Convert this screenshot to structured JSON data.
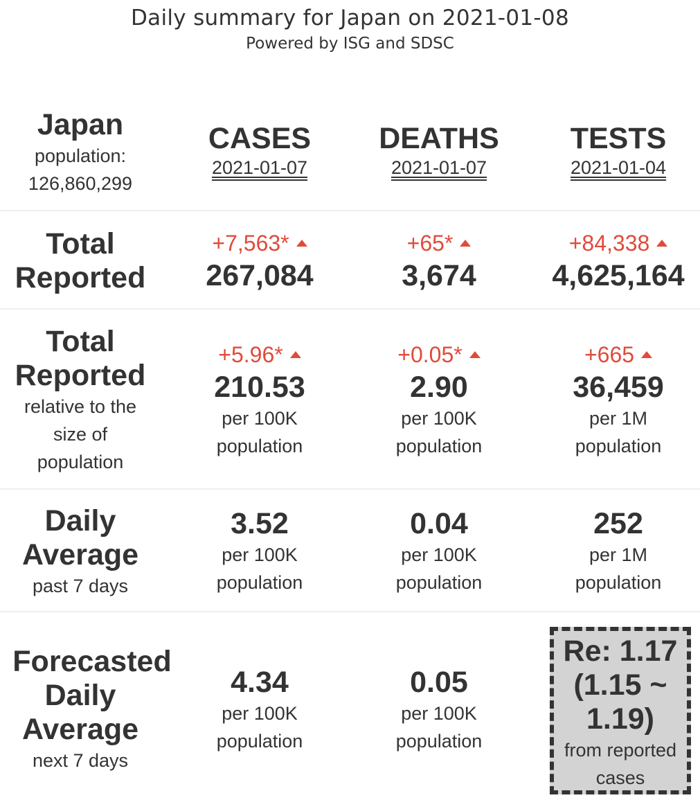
{
  "header": {
    "title": "Daily summary for Japan on 2021-01-08",
    "subtitle": "Powered by ISG and SDSC"
  },
  "country": {
    "name": "Japan",
    "population_label": "population:",
    "population": "126,860,299"
  },
  "columns": [
    {
      "name": "CASES",
      "date": "2021-01-07"
    },
    {
      "name": "DEATHS",
      "date": "2021-01-07"
    },
    {
      "name": "TESTS",
      "date": "2021-01-04"
    }
  ],
  "rows": {
    "total_reported": {
      "label_line1": "Total",
      "label_line2": "Reported",
      "cells": [
        {
          "delta": "+7,563*",
          "value": "267,084"
        },
        {
          "delta": "+65*",
          "value": "3,674"
        },
        {
          "delta": "+84,338",
          "value": "4,625,164"
        }
      ]
    },
    "relative": {
      "label_line1": "Total",
      "label_line2": "Reported",
      "sub_line1": "relative to the",
      "sub_line2": "size of",
      "sub_line3": "population",
      "cells": [
        {
          "delta": "+5.96*",
          "value": "210.53",
          "unit_line1": "per 100K",
          "unit_line2": "population"
        },
        {
          "delta": "+0.05*",
          "value": "2.90",
          "unit_line1": "per 100K",
          "unit_line2": "population"
        },
        {
          "delta": "+665",
          "value": "36,459",
          "unit_line1": "per 1M",
          "unit_line2": "population"
        }
      ]
    },
    "daily_average": {
      "label_line1": "Daily",
      "label_line2": "Average",
      "sub": "past 7 days",
      "cells": [
        {
          "value": "3.52",
          "unit_line1": "per 100K",
          "unit_line2": "population"
        },
        {
          "value": "0.04",
          "unit_line1": "per 100K",
          "unit_line2": "population"
        },
        {
          "value": "252",
          "unit_line1": "per 1M",
          "unit_line2": "population"
        }
      ]
    },
    "forecast": {
      "label_line1": "Forecasted",
      "label_line2": "Daily",
      "label_line3": "Average",
      "sub": "next 7 days",
      "cells": [
        {
          "value": "4.34",
          "unit_line1": "per 100K",
          "unit_line2": "population"
        },
        {
          "value": "0.05",
          "unit_line1": "per 100K",
          "unit_line2": "population"
        }
      ],
      "re": {
        "line1": "Re: 1.17",
        "line2": "(1.15 ~",
        "line3": "1.19)",
        "note_line1": "from reported",
        "note_line2": "cases"
      }
    }
  },
  "colors": {
    "increase": "#e04b3a",
    "text": "#333333",
    "re_box_bg": "#d3d3d3",
    "divider": "#eeeeee"
  },
  "icons": {
    "increase": "triangle-up-icon"
  }
}
